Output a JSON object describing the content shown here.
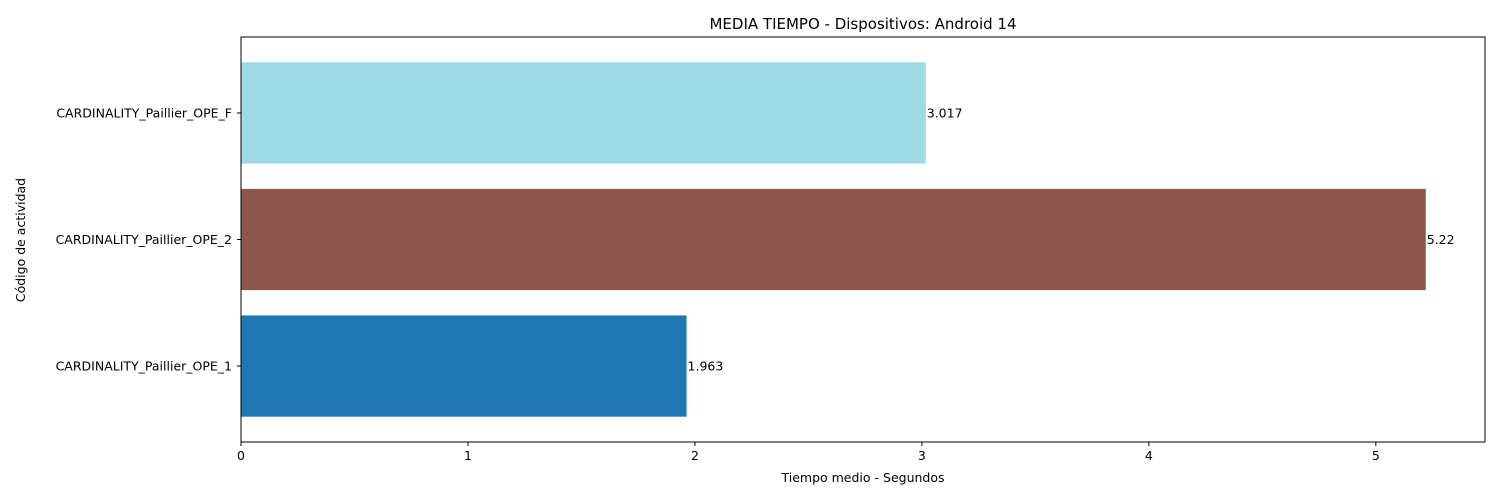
{
  "chart_data": {
    "type": "bar",
    "orientation": "horizontal",
    "title": "MEDIA TIEMPO - Dispositivos: Android 14",
    "xlabel": "Tiempo medio - Segundos",
    "ylabel": "Código de actividad",
    "categories": [
      "CARDINALITY_Paillier_OPE_1",
      "CARDINALITY_Paillier_OPE_2",
      "CARDINALITY_Paillier_OPE_F"
    ],
    "values": [
      1.963,
      5.22,
      3.017
    ],
    "data_labels": [
      "1.963",
      "5.22",
      "3.017"
    ],
    "colors": [
      "#1f77b4",
      "#8c564b",
      "#9edae5"
    ],
    "xlim": [
      0,
      5.481
    ],
    "xticks": [
      0,
      1,
      2,
      3,
      4,
      5
    ],
    "xtick_labels": [
      "0",
      "1",
      "2",
      "3",
      "4",
      "5"
    ],
    "grid": false,
    "legend": "none"
  }
}
